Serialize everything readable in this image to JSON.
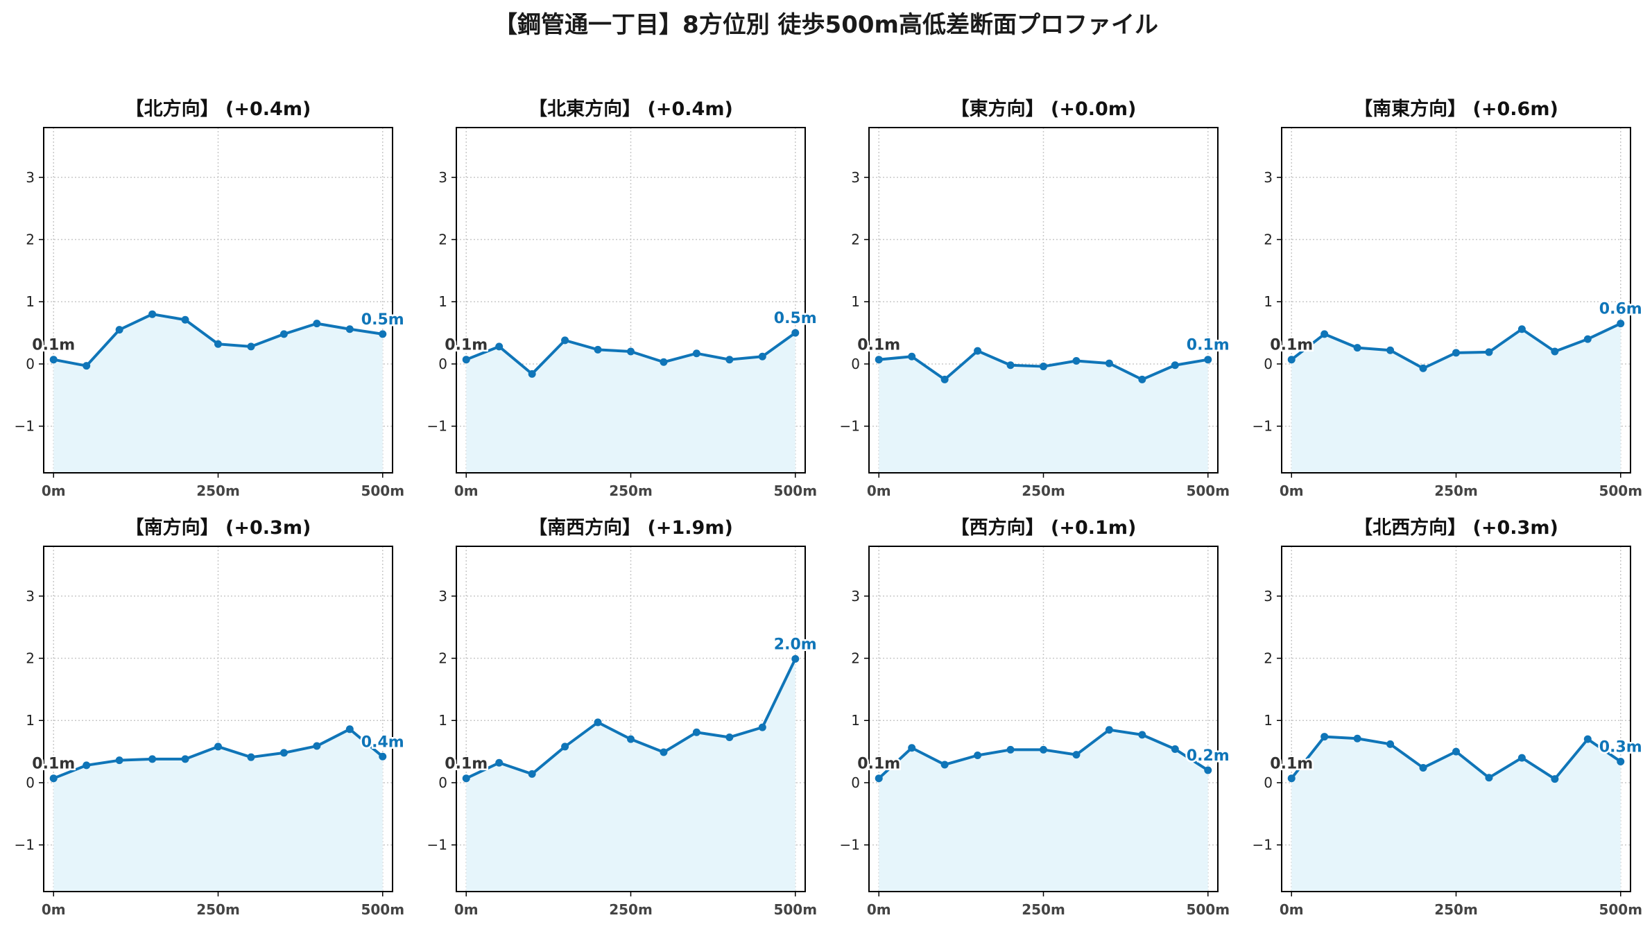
{
  "figure": {
    "title": "【鋼管通一丁目】8方位別 徒歩500m高低差断面プロファイル",
    "colors": {
      "line": "#0f75b8",
      "fill": "#e6f5fb",
      "start_label": "#333333",
      "end_label": "#0f75b8",
      "grid": "#c8c8c8"
    }
  },
  "chart_data": [
    {
      "type": "area",
      "title": "【北方向】 (+0.4m)",
      "x": [
        0,
        50,
        100,
        150,
        200,
        250,
        300,
        350,
        400,
        450,
        500
      ],
      "y": [
        0.07,
        -0.03,
        0.55,
        0.8,
        0.71,
        0.32,
        0.28,
        0.48,
        0.65,
        0.56,
        0.48
      ],
      "start_label": "0.1m",
      "end_label": "0.5m",
      "xticks": [
        "0m",
        "250m",
        "500m"
      ],
      "yticks": [
        "−1",
        "0",
        "1",
        "2",
        "3"
      ],
      "xlim": [
        -15,
        515
      ],
      "ylim": [
        -1.75,
        3.8
      ],
      "grid": true
    },
    {
      "type": "area",
      "title": "【北東方向】 (+0.4m)",
      "x": [
        0,
        50,
        100,
        150,
        200,
        250,
        300,
        350,
        400,
        450,
        500
      ],
      "y": [
        0.07,
        0.28,
        -0.16,
        0.38,
        0.23,
        0.2,
        0.03,
        0.17,
        0.07,
        0.12,
        0.5
      ],
      "start_label": "0.1m",
      "end_label": "0.5m",
      "xticks": [
        "0m",
        "250m",
        "500m"
      ],
      "yticks": [
        "−1",
        "0",
        "1",
        "2",
        "3"
      ],
      "xlim": [
        -15,
        515
      ],
      "ylim": [
        -1.75,
        3.8
      ],
      "grid": true
    },
    {
      "type": "area",
      "title": "【東方向】 (+0.0m)",
      "x": [
        0,
        50,
        100,
        150,
        200,
        250,
        300,
        350,
        400,
        450,
        500
      ],
      "y": [
        0.07,
        0.12,
        -0.25,
        0.21,
        -0.02,
        -0.04,
        0.05,
        0.01,
        -0.25,
        -0.02,
        0.07
      ],
      "start_label": "0.1m",
      "end_label": "0.1m",
      "xticks": [
        "0m",
        "250m",
        "500m"
      ],
      "yticks": [
        "−1",
        "0",
        "1",
        "2",
        "3"
      ],
      "xlim": [
        -15,
        515
      ],
      "ylim": [
        -1.75,
        3.8
      ],
      "grid": true
    },
    {
      "type": "area",
      "title": "【南東方向】 (+0.6m)",
      "x": [
        0,
        50,
        100,
        150,
        200,
        250,
        300,
        350,
        400,
        450,
        500
      ],
      "y": [
        0.07,
        0.48,
        0.26,
        0.22,
        -0.07,
        0.18,
        0.19,
        0.56,
        0.2,
        0.4,
        0.65
      ],
      "start_label": "0.1m",
      "end_label": "0.6m",
      "xticks": [
        "0m",
        "250m",
        "500m"
      ],
      "yticks": [
        "−1",
        "0",
        "1",
        "2",
        "3"
      ],
      "xlim": [
        -15,
        515
      ],
      "ylim": [
        -1.75,
        3.8
      ],
      "grid": true
    },
    {
      "type": "area",
      "title": "【南方向】 (+0.3m)",
      "x": [
        0,
        50,
        100,
        150,
        200,
        250,
        300,
        350,
        400,
        450,
        500
      ],
      "y": [
        0.07,
        0.28,
        0.36,
        0.38,
        0.38,
        0.58,
        0.41,
        0.48,
        0.59,
        0.86,
        0.42
      ],
      "start_label": "0.1m",
      "end_label": "0.4m",
      "xticks": [
        "0m",
        "250m",
        "500m"
      ],
      "yticks": [
        "−1",
        "0",
        "1",
        "2",
        "3"
      ],
      "xlim": [
        -15,
        515
      ],
      "ylim": [
        -1.75,
        3.8
      ],
      "grid": true
    },
    {
      "type": "area",
      "title": "【南西方向】 (+1.9m)",
      "x": [
        0,
        50,
        100,
        150,
        200,
        250,
        300,
        350,
        400,
        450,
        500
      ],
      "y": [
        0.07,
        0.32,
        0.14,
        0.58,
        0.97,
        0.7,
        0.49,
        0.81,
        0.73,
        0.89,
        1.99
      ],
      "start_label": "0.1m",
      "end_label": "2.0m",
      "xticks": [
        "0m",
        "250m",
        "500m"
      ],
      "yticks": [
        "−1",
        "0",
        "1",
        "2",
        "3"
      ],
      "xlim": [
        -15,
        515
      ],
      "ylim": [
        -1.75,
        3.8
      ],
      "grid": true
    },
    {
      "type": "area",
      "title": "【西方向】 (+0.1m)",
      "x": [
        0,
        50,
        100,
        150,
        200,
        250,
        300,
        350,
        400,
        450,
        500
      ],
      "y": [
        0.07,
        0.56,
        0.29,
        0.44,
        0.53,
        0.53,
        0.45,
        0.85,
        0.77,
        0.54,
        0.2
      ],
      "start_label": "0.1m",
      "end_label": "0.2m",
      "xticks": [
        "0m",
        "250m",
        "500m"
      ],
      "yticks": [
        "−1",
        "0",
        "1",
        "2",
        "3"
      ],
      "xlim": [
        -15,
        515
      ],
      "ylim": [
        -1.75,
        3.8
      ],
      "grid": true
    },
    {
      "type": "area",
      "title": "【北西方向】 (+0.3m)",
      "x": [
        0,
        50,
        100,
        150,
        200,
        250,
        300,
        350,
        400,
        450,
        500
      ],
      "y": [
        0.07,
        0.74,
        0.71,
        0.62,
        0.24,
        0.5,
        0.08,
        0.4,
        0.06,
        0.7,
        0.34
      ],
      "start_label": "0.1m",
      "end_label": "0.3m",
      "xticks": [
        "0m",
        "250m",
        "500m"
      ],
      "yticks": [
        "−1",
        "0",
        "1",
        "2",
        "3"
      ],
      "xlim": [
        -15,
        515
      ],
      "ylim": [
        -1.75,
        3.8
      ],
      "grid": true
    }
  ]
}
